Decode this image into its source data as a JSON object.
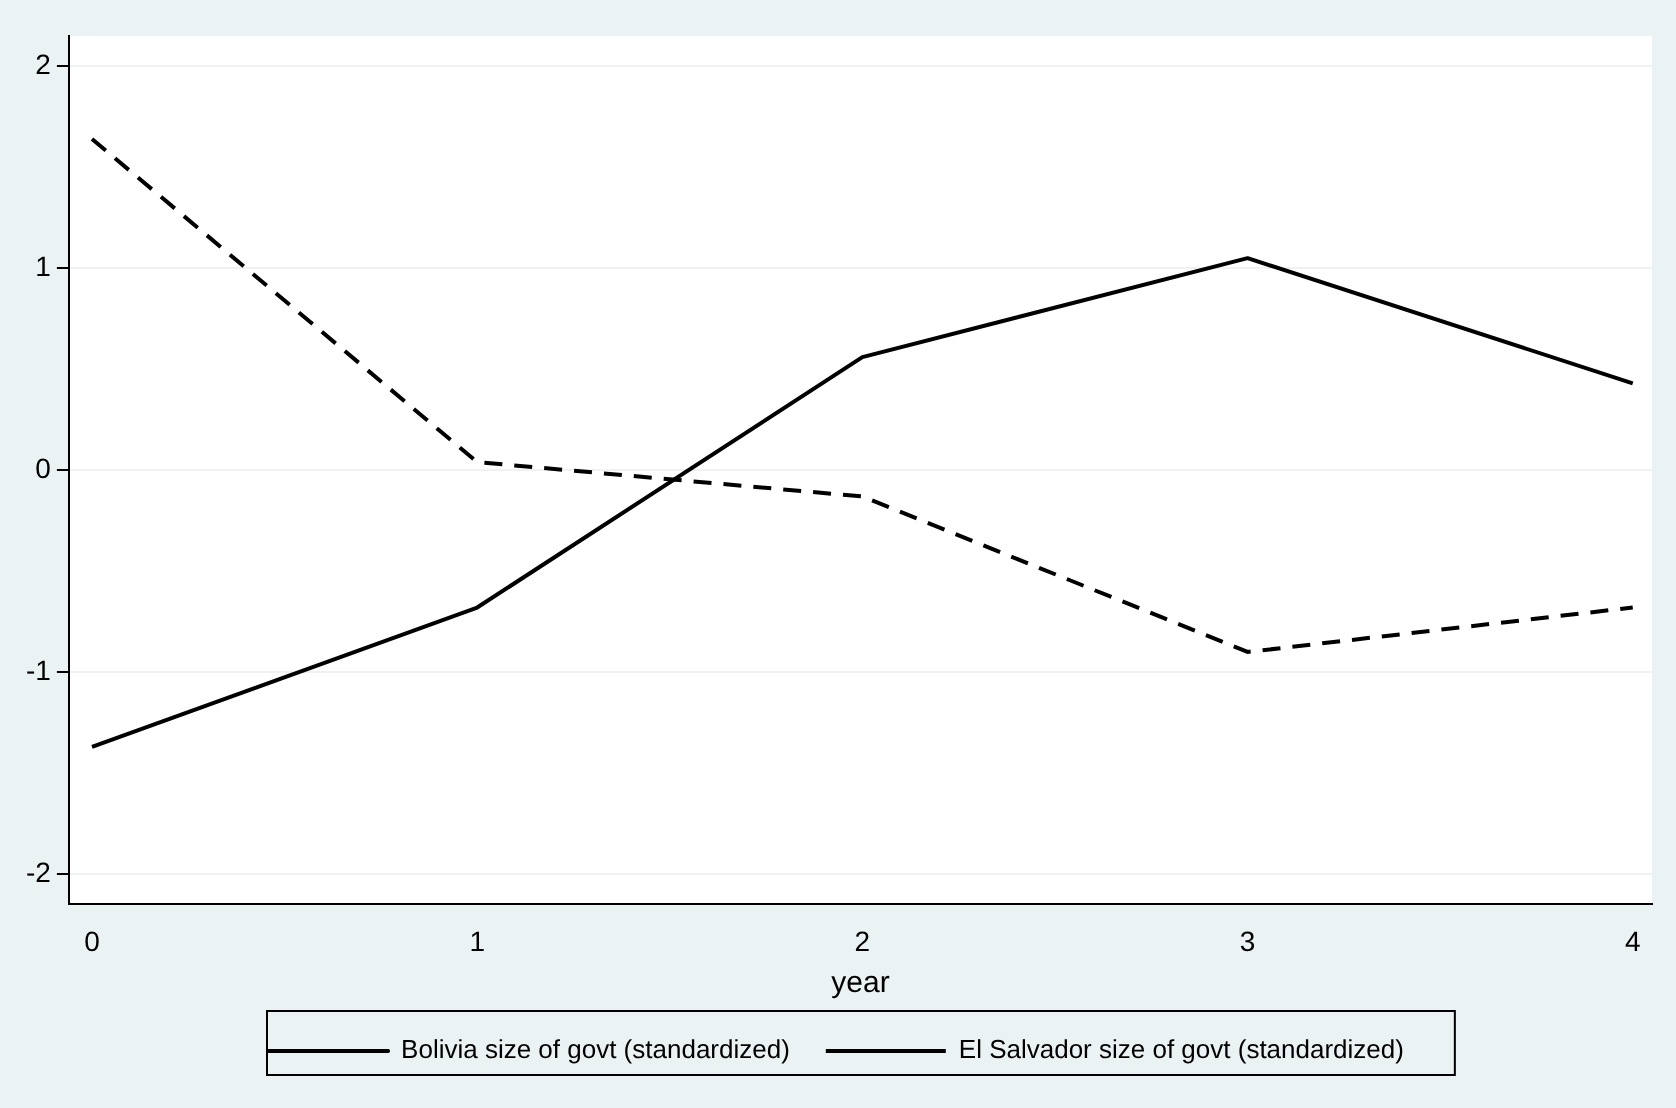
{
  "chart_data": {
    "type": "line",
    "xlabel": "year",
    "x": [
      0,
      1,
      2,
      3,
      4
    ],
    "series": [
      {
        "name": "Bolivia size of govt (standardized)",
        "color": "#000000",
        "line_style": "solid",
        "values": [
          -1.37,
          -0.68,
          0.56,
          1.05,
          0.43
        ]
      },
      {
        "name": "El Salvador size of govt (standardized)",
        "color": "#000000",
        "line_style": "dashed",
        "values": [
          1.64,
          0.04,
          -0.13,
          -0.9,
          -0.68
        ]
      }
    ],
    "xlim": [
      -0.06,
      4.05
    ],
    "xticks": [
      0,
      1,
      2,
      3,
      4
    ],
    "ylim": [
      -2.15,
      2.15
    ],
    "yticks": [
      -2,
      -1,
      0,
      1,
      2
    ],
    "grid": "y",
    "legend": "bottom",
    "marker": "none"
  }
}
